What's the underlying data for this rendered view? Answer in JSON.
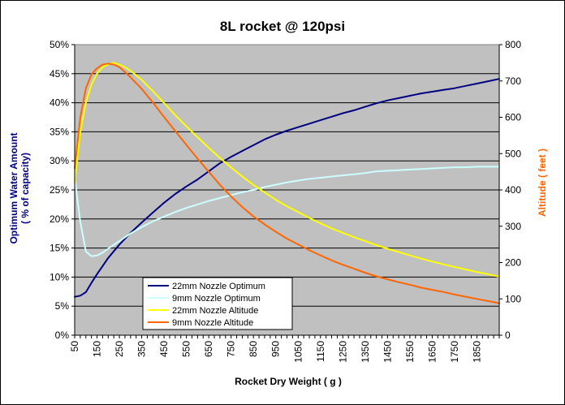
{
  "chart_data": {
    "type": "line",
    "title": "8L rocket @ 120psi",
    "xlabel": "Rocket Dry Weight ( g )",
    "ylabel_line1": "Optimum Water Amount",
    "ylabel_line2": "( % of capacity)",
    "y2label": "Altitude ( feet )",
    "xlim": [
      50,
      1950
    ],
    "ylim": [
      0,
      50
    ],
    "y2lim": [
      0,
      800
    ],
    "grid": true,
    "legend_position": "bottom-left",
    "x_ticks": [
      "50",
      "150",
      "250",
      "350",
      "450",
      "550",
      "650",
      "750",
      "850",
      "950",
      "1050",
      "1150",
      "1250",
      "1350",
      "1450",
      "1550",
      "1650",
      "1750",
      "1850"
    ],
    "y_ticks": [
      "0%",
      "5%",
      "10%",
      "15%",
      "20%",
      "25%",
      "30%",
      "35%",
      "40%",
      "45%",
      "50%"
    ],
    "y2_ticks": [
      "0",
      "100",
      "200",
      "300",
      "400",
      "500",
      "600",
      "700",
      "800"
    ],
    "colors": {
      "plot_bg": "#c0c0c0",
      "gridline": "#000000",
      "ylabel": "#000080",
      "y2label": "#ff6600"
    },
    "series": [
      {
        "name": "22mm Nozzle Optimum",
        "axis": "left",
        "color": "#000080",
        "x": [
          50,
          75,
          100,
          125,
          150,
          200,
          250,
          300,
          350,
          400,
          450,
          500,
          550,
          600,
          650,
          700,
          750,
          800,
          850,
          900,
          950,
          1000,
          1050,
          1100,
          1150,
          1200,
          1250,
          1300,
          1350,
          1400,
          1450,
          1500,
          1550,
          1600,
          1650,
          1700,
          1750,
          1800,
          1850,
          1900,
          1950
        ],
        "y": [
          6.6,
          6.8,
          7.4,
          9.0,
          10.5,
          13.3,
          15.6,
          17.6,
          19.4,
          21.1,
          22.8,
          24.3,
          25.6,
          26.8,
          28.2,
          29.6,
          30.7,
          31.7,
          32.7,
          33.7,
          34.5,
          35.2,
          35.8,
          36.4,
          37.0,
          37.6,
          38.2,
          38.7,
          39.3,
          39.9,
          40.4,
          40.8,
          41.2,
          41.6,
          41.9,
          42.2,
          42.5,
          42.9,
          43.3,
          43.7,
          44.1
        ]
      },
      {
        "name": "9mm Nozzle Optimum",
        "axis": "left",
        "color": "#ccffff",
        "x": [
          50,
          60,
          75,
          100,
          125,
          150,
          175,
          200,
          250,
          300,
          350,
          400,
          450,
          500,
          550,
          600,
          650,
          700,
          750,
          800,
          850,
          900,
          950,
          1000,
          1050,
          1100,
          1150,
          1200,
          1250,
          1300,
          1350,
          1400,
          1450,
          1500,
          1550,
          1600,
          1650,
          1700,
          1750,
          1800,
          1850,
          1900,
          1950
        ],
        "y": [
          27.5,
          24.0,
          19.5,
          14.4,
          13.6,
          13.7,
          14.2,
          14.9,
          16.2,
          17.5,
          18.6,
          19.6,
          20.4,
          21.2,
          21.9,
          22.5,
          23.1,
          23.6,
          24.1,
          24.6,
          25.0,
          25.5,
          25.9,
          26.3,
          26.6,
          26.9,
          27.1,
          27.3,
          27.5,
          27.7,
          27.9,
          28.2,
          28.3,
          28.4,
          28.5,
          28.6,
          28.7,
          28.8,
          28.9,
          28.9,
          29.0,
          29.0,
          29.0
        ]
      },
      {
        "name": "22mm Nozzle Altitude",
        "axis": "right",
        "color": "#ffff00",
        "x": [
          50,
          75,
          100,
          125,
          150,
          175,
          200,
          225,
          250,
          275,
          300,
          350,
          400,
          450,
          500,
          550,
          600,
          650,
          700,
          750,
          800,
          850,
          900,
          950,
          1000,
          1050,
          1100,
          1150,
          1200,
          1250,
          1300,
          1350,
          1400,
          1450,
          1500,
          1550,
          1600,
          1650,
          1700,
          1750,
          1800,
          1850,
          1900,
          1950
        ],
        "y": [
          420,
          560,
          640,
          690,
          720,
          738,
          746,
          750,
          745,
          738,
          728,
          703,
          672,
          639,
          606,
          575,
          545,
          516,
          488,
          462,
          437,
          414,
          393,
          373,
          355,
          339,
          323,
          308,
          294,
          282,
          270,
          259,
          248,
          238,
          229,
          220,
          211,
          203,
          195,
          188,
          181,
          174,
          168,
          161
        ]
      },
      {
        "name": "9mm Nozzle Altitude",
        "axis": "right",
        "color": "#ff6600",
        "x": [
          50,
          75,
          100,
          125,
          150,
          175,
          200,
          225,
          250,
          275,
          300,
          350,
          400,
          450,
          500,
          550,
          600,
          650,
          700,
          750,
          800,
          850,
          900,
          950,
          1000,
          1050,
          1100,
          1150,
          1200,
          1250,
          1300,
          1350,
          1400,
          1450,
          1500,
          1550,
          1600,
          1650,
          1700,
          1750,
          1800,
          1850,
          1900,
          1950
        ],
        "y": [
          460,
          600,
          680,
          718,
          735,
          745,
          748,
          745,
          738,
          725,
          710,
          678,
          641,
          601,
          562,
          524,
          486,
          450,
          414,
          382,
          353,
          327,
          305,
          285,
          266,
          250,
          234,
          220,
          206,
          194,
          183,
          172,
          162,
          154,
          146,
          139,
          131,
          125,
          119,
          112,
          106,
          100,
          94,
          88
        ]
      }
    ]
  }
}
